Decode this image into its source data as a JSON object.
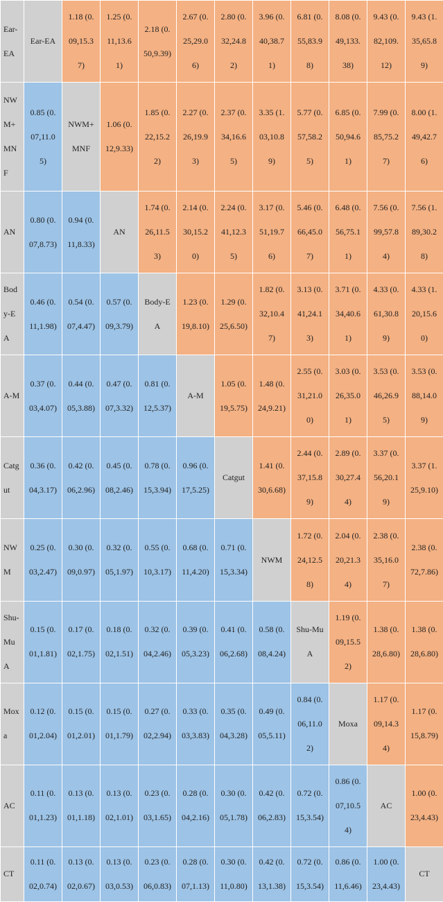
{
  "table": {
    "rows": [
      [
        "Ear-EA",
        "Ear-EA",
        "1.18 (0.09,15.37)",
        "1.25 (0.11,13.61)",
        "2.18 (0.50,9.39)",
        "2.67 (0.25,29.06)",
        "2.80 (0.32,24.82)",
        "3.96 (0.40,38.71)",
        "6.81 (0.55,83.98)",
        "8.08 (0.49,133.38)",
        "9.43 (0.82,109.12)",
        "9.43 (1.35,65.89)"
      ],
      [
        "NWM+MNF",
        "0.85 (0.07,11.05)",
        "NWM+MNF",
        "1.06 (0.12,9.33)",
        "1.85 (0.22,15.22)",
        "2.27 (0.26,19.93)",
        "2.37 (0.34,16.65)",
        "3.35 (1.03,10.89)",
        "5.77 (0.57,58.25)",
        "6.85 (0.50,94.61)",
        "7.99 (0.85,75.27)",
        "8.00 (1.49,42.76)"
      ],
      [
        "AN",
        "0.80 (0.07,8.73)",
        "0.94 (0.11,8.33)",
        "AN",
        "1.74 (0.26,11.53)",
        "2.14 (0.30,15.20)",
        "2.24 (0.41,12.35)",
        "3.17 (0.51,19.76)",
        "5.46 (0.66,45.07)",
        "6.48 (0.56,75.11)",
        "7.56 (0.99,57.84)",
        "7.56 (1.89,30.28)"
      ],
      [
        "Body-EA",
        "0.46 (0.11,1.98)",
        "0.54 (0.07,4.47)",
        "0.57 (0.09,3.79)",
        "Body-EA",
        "1.23 (0.19,8.10)",
        "1.29 (0.25,6.50)",
        "1.82 (0.32,10.47)",
        "3.13 (0.41,24.13)",
        "3.71 (0.34,40.61)",
        "4.33 (0.61,30.89)",
        "4.33 (1.20,15.60)"
      ],
      [
        "A-M",
        "0.37 (0.03,4.07)",
        "0.44 (0.05,3.88)",
        "0.47 (0.07,3.32)",
        "0.81 (0.12,5.37)",
        "A-M",
        "1.05 (0.19,5.75)",
        "1.48 (0.24,9.21)",
        "2.55 (0.31,21.00)",
        "3.03 (0.26,35.01)",
        "3.53 (0.46,26.95)",
        "3.53 (0.88,14.09)"
      ],
      [
        "Catgut",
        "0.36 (0.04,3.17)",
        "0.42 (0.06,2.96)",
        "0.45 (0.08,2.46)",
        "0.78 (0.15,3.94)",
        "0.96 (0.17,5.25)",
        "Catgut",
        "1.41 (0.30,6.68)",
        "2.44 (0.37,15.89)",
        "2.89 (0.30,27.44)",
        "3.37 (0.56,20.19)",
        "3.37 (1.25,9.10)"
      ],
      [
        "NWM",
        "0.25 (0.03,2.47)",
        "0.30 (0.09,0.97)",
        "0.32 (0.05,1.97)",
        "0.55 (0.10,3.17)",
        "0.68 (0.11,4.20)",
        "0.71 (0.15,3.34)",
        "NWM",
        "1.72 (0.24,12.58)",
        "2.04 (0.20,21.34)",
        "2.38 (0.35,16.07)",
        "2.38 (0.72,7.86)"
      ],
      [
        "Shu-Mu A",
        "0.15 (0.01,1.81)",
        "0.17 (0.02,1.75)",
        "0.18 (0.02,1.51)",
        "0.32 (0.04,2.46)",
        "0.39 (0.05,3.23)",
        "0.41 (0.06,2.68)",
        "0.58 (0.08,4.24)",
        "Shu-Mu A",
        "1.19 (0.09,15.52)",
        "1.38 (0.28,6.80)",
        "1.38 (0.28,6.80)"
      ],
      [
        "Moxa",
        "0.12 (0.01,2.04)",
        "0.15 (0.01,2.01)",
        "0.15 (0.01,1.79)",
        "0.27 (0.02,2.94)",
        "0.33 (0.03,3.83)",
        "0.35 (0.04,3.28)",
        "0.49 (0.05,5.11)",
        "0.84 (0.06,11.02)",
        "Moxa",
        "1.17 (0.09,14.34)",
        "1.17 (0.15,8.79)"
      ],
      [
        "AC",
        "0.11 (0.01,1.23)",
        "0.13 (0.01,1.18)",
        "0.13 (0.02,1.01)",
        "0.23 (0.03,1.65)",
        "0.28 (0.04,2.16)",
        "0.30 (0.05,1.78)",
        "0.42 (0.06,2.83)",
        "0.72 (0.15,3.54)",
        "0.86 (0.07,10.54)",
        "AC",
        "1.00 (0.23,4.43)"
      ],
      [
        "CT",
        "0.11 (0.02,0.74)",
        "0.13 (0.02,0.67)",
        "0.13 (0.03,0.53)",
        "0.23 (0.06,0.83)",
        "0.28 (0.07,1.13)",
        "0.30 (0.11,0.80)",
        "0.42 (0.13,1.38)",
        "0.72 (0.15,3.54)",
        "0.86 (0.11,6.46)",
        "1.00 (0.23,4.43)",
        "CT"
      ]
    ]
  }
}
